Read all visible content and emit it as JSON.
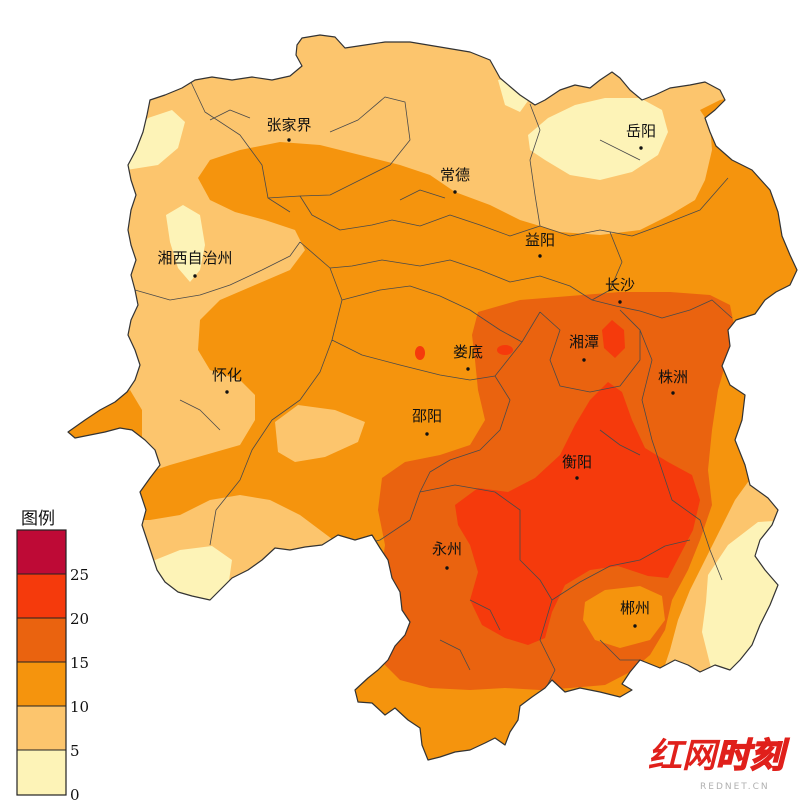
{
  "colors": {
    "pale_yellow": "#fdf3b7",
    "light_orange": "#fcc56d",
    "orange": "#f5940d",
    "dark_orange": "#ea630f",
    "red": "#f53a0c",
    "crimson": "#be0a36",
    "boundary": "#4a4a4a",
    "outline": "#333333",
    "logo_red": "#e0201b",
    "logo_white": "#ffffff"
  },
  "legend": {
    "title": "图例",
    "breaks": [
      "25",
      "20",
      "15",
      "10",
      "5",
      "0"
    ]
  },
  "cities": [
    "张家界",
    "常德",
    "岳阳",
    "湘西自治州",
    "益阳",
    "长沙",
    "湘潭",
    "娄底",
    "株洲",
    "怀化",
    "邵阳",
    "衡阳",
    "永州",
    "郴州"
  ],
  "watermark": {
    "logo_a": "红网",
    "logo_b": "时刻",
    "sub": "REDNET.CN"
  }
}
